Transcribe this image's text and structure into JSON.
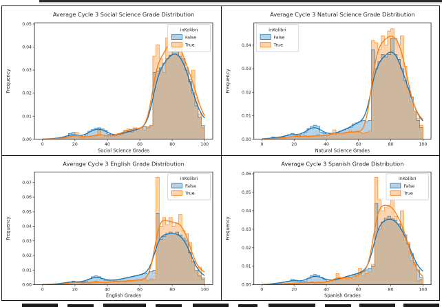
{
  "page": {
    "background": "#ffffff",
    "table_border_color": "#151515",
    "top_strip_color": "#2e2e2e"
  },
  "colors": {
    "false_series": "#1f77b4",
    "true_series": "#ff7f0e",
    "axes": "#2e2e2e",
    "text": "#262626"
  },
  "chart_data": [
    {
      "type": "bar",
      "subtype": "histogram-with-kde",
      "title": "Average Cycle 3 Social Science Grade Distribution",
      "xlabel": "Social Science Grades",
      "ylabel": "Frequency",
      "xlim": [
        -5,
        105
      ],
      "ylim": [
        0,
        0.0505
      ],
      "xticks": [
        0,
        20,
        40,
        60,
        80,
        100
      ],
      "yticks": [
        0,
        0.01,
        0.02,
        0.03,
        0.04,
        0.05
      ],
      "ytick_labels": [
        "0.00",
        "0.01",
        "0.02",
        "0.03",
        "0.04",
        "0.05"
      ],
      "grid": false,
      "legend": {
        "title": "inKolibri",
        "labels": [
          "False",
          "True"
        ],
        "position": "upper-right"
      },
      "bin_start": 0,
      "bin_width": 2,
      "series": [
        {
          "name": "False",
          "color": "#1f77b4",
          "values": [
            0,
            0.0001,
            0.0002,
            0.0003,
            0.0005,
            0.0006,
            0.0008,
            0.001,
            0.0025,
            0.003,
            0.0015,
            0.001,
            0.0012,
            0.0018,
            0.0035,
            0.0042,
            0.0048,
            0.005,
            0.0045,
            0.0038,
            0.0022,
            0.0015,
            0.0016,
            0.002,
            0.0025,
            0.003,
            0.0035,
            0.0032,
            0.004,
            0.0045,
            0.005,
            0.0055,
            0.005,
            0.006,
            0.029,
            0.0295,
            0.031,
            0.033,
            0.035,
            0.0365,
            0.0395,
            0.038,
            0.036,
            0.035,
            0.03,
            0.025,
            0.02,
            0.0145,
            0.0095,
            0.006
          ]
        },
        {
          "name": "True",
          "color": "#ff7f0e",
          "values": [
            0,
            0,
            0.0001,
            0.0002,
            0.0003,
            0.0004,
            0.0005,
            0.0008,
            0.001,
            0.0015,
            0.003,
            0.001,
            0.0008,
            0.001,
            0.0012,
            0.001,
            0.0015,
            0.004,
            0.001,
            0.0015,
            0.001,
            0.0015,
            0.002,
            0.0025,
            0.002,
            0.004,
            0.0045,
            0.004,
            0.005,
            0.0045,
            0.005,
            0.004,
            0.0055,
            0.006,
            0.036,
            0.041,
            0.035,
            0.029,
            0.044,
            0.046,
            0.048,
            0.04,
            0.044,
            0.035,
            0.031,
            0.026,
            0.03,
            0.018,
            0.011,
            0.005
          ]
        }
      ]
    },
    {
      "type": "bar",
      "subtype": "histogram-with-kde",
      "title": "Average Cycle 3 Natural Science Grade Distribution",
      "xlabel": "Natural Science Grades",
      "ylabel": "Frequency",
      "xlim": [
        -5,
        105
      ],
      "ylim": [
        0,
        0.0495
      ],
      "xticks": [
        0,
        20,
        40,
        60,
        80,
        100
      ],
      "yticks": [
        0,
        0.01,
        0.02,
        0.03,
        0.04
      ],
      "ytick_labels": [
        "0.00",
        "0.01",
        "0.02",
        "0.03",
        "0.04"
      ],
      "grid": false,
      "legend": {
        "title": "inKolibri",
        "labels": [
          "False",
          "True"
        ],
        "position": "upper-left"
      },
      "bin_start": 0,
      "bin_width": 2,
      "series": [
        {
          "name": "False",
          "color": "#1f77b4",
          "values": [
            0,
            0.0002,
            0.0004,
            0.001,
            0.0005,
            0.0008,
            0.001,
            0.0015,
            0.002,
            0.0025,
            0.002,
            0.0015,
            0.002,
            0.003,
            0.0045,
            0.0055,
            0.006,
            0.0055,
            0.003,
            0.0025,
            0.002,
            0.0025,
            0.002,
            0.003,
            0.0035,
            0.004,
            0.0045,
            0.005,
            0.0065,
            0.007,
            0.0075,
            0.008,
            0.0075,
            0.008,
            0.038,
            0.03,
            0.033,
            0.036,
            0.035,
            0.036,
            0.043,
            0.036,
            0.034,
            0.03,
            0.025,
            0.022,
            0.018,
            0.012,
            0.008,
            0.005
          ]
        },
        {
          "name": "True",
          "color": "#ff7f0e",
          "values": [
            0,
            0,
            0.0002,
            0.0003,
            0.0004,
            0.0005,
            0.0006,
            0.0008,
            0.001,
            0.0012,
            0.0015,
            0.001,
            0.0012,
            0.0015,
            0.001,
            0.0012,
            0.0015,
            0.002,
            0.0015,
            0.001,
            0.0015,
            0.002,
            0.004,
            0.0025,
            0.002,
            0.0025,
            0.003,
            0.0035,
            0.003,
            0.0035,
            0.003,
            0.0025,
            0.003,
            0.0035,
            0.042,
            0.041,
            0.038,
            0.044,
            0.04,
            0.046,
            0.047,
            0.043,
            0.04,
            0.044,
            0.031,
            0.02,
            0.016,
            0.012,
            0.009,
            0.006
          ]
        }
      ]
    },
    {
      "type": "bar",
      "subtype": "histogram-with-kde",
      "title": "Average Cycle 3 English Grade Distribution",
      "xlabel": "English Grades",
      "ylabel": "Frequency",
      "xlim": [
        -5,
        105
      ],
      "ylim": [
        0,
        0.0772
      ],
      "xticks": [
        0,
        20,
        40,
        60,
        80,
        100
      ],
      "yticks": [
        0,
        0.01,
        0.02,
        0.03,
        0.04,
        0.05,
        0.06,
        0.07
      ],
      "ytick_labels": [
        "0.00",
        "0.01",
        "0.02",
        "0.03",
        "0.04",
        "0.05",
        "0.06",
        "0.07"
      ],
      "grid": false,
      "legend": {
        "title": "inKolibri",
        "labels": [
          "False",
          "True"
        ],
        "position": "upper-right"
      },
      "bin_start": 0,
      "bin_width": 2,
      "series": [
        {
          "name": "False",
          "color": "#1f77b4",
          "values": [
            0,
            0.0002,
            0.0003,
            0.0005,
            0.0006,
            0.0008,
            0.001,
            0.0015,
            0.002,
            0.0025,
            0.002,
            0.0015,
            0.002,
            0.0025,
            0.004,
            0.0055,
            0.006,
            0.0055,
            0.004,
            0.003,
            0.0028,
            0.003,
            0.0032,
            0.0035,
            0.004,
            0.0045,
            0.005,
            0.0055,
            0.006,
            0.0065,
            0.007,
            0.0075,
            0.008,
            0.009,
            0.01,
            0.049,
            0.031,
            0.033,
            0.035,
            0.036,
            0.035,
            0.036,
            0.034,
            0.032,
            0.03,
            0.022,
            0.016,
            0.01,
            0.006,
            0.004
          ]
        },
        {
          "name": "True",
          "color": "#ff7f0e",
          "values": [
            0,
            0,
            0.0001,
            0.0002,
            0.0003,
            0.0003,
            0.0004,
            0.0005,
            0.002,
            0.0015,
            0.002,
            0.0015,
            0.001,
            0.0015,
            0.001,
            0.002,
            0.0025,
            0.002,
            0.0015,
            0.001,
            0.002,
            0.002,
            0.003,
            0.002,
            0.0025,
            0.002,
            0.003,
            0.0025,
            0.003,
            0.0035,
            0.003,
            0.004,
            0.003,
            0.004,
            0.0035,
            0.0735,
            0.04,
            0.046,
            0.041,
            0.046,
            0.04,
            0.042,
            0.048,
            0.037,
            0.035,
            0.029,
            0.015,
            0.01,
            0.012,
            0.005
          ]
        }
      ]
    },
    {
      "type": "bar",
      "subtype": "histogram-with-kde",
      "title": "Average Cycle 3 Spanish Grade Distribution",
      "xlabel": "Spanish Grades",
      "ylabel": "Frequency",
      "xlim": [
        -5,
        105
      ],
      "ylim": [
        0,
        0.061
      ],
      "xticks": [
        0,
        20,
        40,
        60,
        80,
        100
      ],
      "yticks": [
        0,
        0.01,
        0.02,
        0.03,
        0.04,
        0.05,
        0.06
      ],
      "ytick_labels": [
        "0.00",
        "0.01",
        "0.02",
        "0.03",
        "0.04",
        "0.05",
        "0.06"
      ],
      "grid": false,
      "legend": {
        "title": "inKolibri",
        "labels": [
          "False",
          "True"
        ],
        "position": "upper-right"
      },
      "bin_start": 0,
      "bin_width": 2,
      "series": [
        {
          "name": "False",
          "color": "#1f77b4",
          "values": [
            0,
            0.0002,
            0.0004,
            0.0005,
            0.0008,
            0.001,
            0.0012,
            0.0015,
            0.0018,
            0.003,
            0.0025,
            0.0015,
            0.0018,
            0.002,
            0.0035,
            0.005,
            0.0055,
            0.005,
            0.004,
            0.0028,
            0.002,
            0.0022,
            0.0025,
            0.003,
            0.0035,
            0.004,
            0.0045,
            0.005,
            0.0055,
            0.006,
            0.0065,
            0.007,
            0.008,
            0.009,
            0.01,
            0.044,
            0.03,
            0.034,
            0.036,
            0.037,
            0.036,
            0.035,
            0.033,
            0.03,
            0.027,
            0.022,
            0.017,
            0.012,
            0.008,
            0.004
          ]
        },
        {
          "name": "True",
          "color": "#ff7f0e",
          "values": [
            0,
            0,
            0.0002,
            0.0002,
            0.0003,
            0.0004,
            0.0004,
            0.0005,
            0.0006,
            0.0008,
            0.001,
            0.0008,
            0.001,
            0.0012,
            0.001,
            0.0015,
            0.001,
            0.0015,
            0.001,
            0.0012,
            0.0015,
            0.002,
            0.0025,
            0.006,
            0.003,
            0.004,
            0.003,
            0.004,
            0.003,
            0.0045,
            0.009,
            0.005,
            0.006,
            0.007,
            0.011,
            0.058,
            0.046,
            0.04,
            0.042,
            0.043,
            0.048,
            0.037,
            0.033,
            0.04,
            0.024,
            0.023,
            0.013,
            0.011,
            0.002,
            0.003
          ]
        }
      ]
    }
  ]
}
